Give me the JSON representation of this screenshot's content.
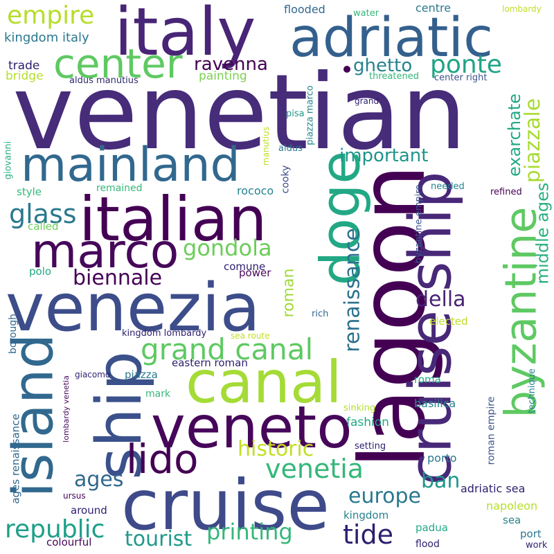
{
  "words": {
    "venetian": {
      "text": "venetian",
      "color": "#472c7a"
    },
    "lagoon": {
      "text": "lagoon",
      "color": "#440154"
    },
    "italy": {
      "text": "italy",
      "color": "#482576"
    },
    "adriatic": {
      "text": "adriatic",
      "color": "#34608d"
    },
    "italian": {
      "text": "italian",
      "color": "#440154"
    },
    "venezia": {
      "text": "venezia",
      "color": "#3d4d8a"
    },
    "mainland": {
      "text": "mainland",
      "color": "#31688e"
    },
    "cruise": {
      "text": "cruise",
      "color": "#3e4a89"
    },
    "canal": {
      "text": "canal",
      "color": "#a5db36"
    },
    "veneto": {
      "text": "veneto",
      "color": "#46075a"
    },
    "marco": {
      "text": "marco",
      "color": "#46075a"
    },
    "ship_left": {
      "text": "ship",
      "color": "#3b518b"
    },
    "island": {
      "text": "island",
      "color": "#31688e"
    },
    "doge": {
      "text": "doge",
      "color": "#22a884"
    },
    "cruiseship": {
      "text": "cruise ship",
      "color": "#482878"
    },
    "byzantine": {
      "text": "byzantine",
      "color": "#5ec962"
    },
    "center": {
      "text": "center",
      "color": "#5ec962"
    },
    "lido": {
      "text": "lido",
      "color": "#440154"
    },
    "empire": {
      "text": "empire",
      "color": "#b5de2b"
    },
    "grand_canal": {
      "text": "grand canal",
      "color": "#5ec962"
    },
    "gondola": {
      "text": "gondola",
      "color": "#6ccd5a"
    },
    "ravenna": {
      "text": "ravenna",
      "color": "#440154"
    },
    "ponte": {
      "text": "ponte",
      "color": "#20a486"
    },
    "ghetto": {
      "text": "ghetto",
      "color": "#26828e"
    },
    "glass": {
      "text": "glass",
      "color": "#2a788e"
    },
    "biennale": {
      "text": "biennale",
      "color": "#440154"
    },
    "della": {
      "text": "della",
      "color": "#482475"
    },
    "important": {
      "text": "important",
      "color": "#1f958b"
    },
    "renaissance": {
      "text": "renaissance",
      "color": "#2c718e"
    },
    "piazzale": {
      "text": "piazzale",
      "color": "#a8db34"
    },
    "exarchate": {
      "text": "exarchate",
      "color": "#22a884"
    },
    "middle_ages": {
      "text": "middle ages",
      "color": "#29af7f"
    },
    "venetia": {
      "text": "venetia",
      "color": "#35b779"
    },
    "historic": {
      "text": "historic",
      "color": "#c2df23"
    },
    "republic": {
      "text": "republic",
      "color": "#1f9e89"
    },
    "europe": {
      "text": "europe",
      "color": "#2a788e"
    },
    "tide": {
      "text": "tide",
      "color": "#2d1e6f"
    },
    "printing": {
      "text": "printing",
      "color": "#35b779"
    },
    "tourist": {
      "text": "tourist",
      "color": "#1f9a8a"
    },
    "ages": {
      "text": "ages",
      "color": "#31688e"
    },
    "ban": {
      "text": "ban",
      "color": "#1f968b"
    },
    "roman": {
      "text": "roman",
      "color": "#a0da39"
    },
    "kingdom_italy": {
      "text": "kingdom italy",
      "color": "#2a788e"
    },
    "trade": {
      "text": "trade",
      "color": "#2d1e6f"
    },
    "bridge": {
      "text": "bridge",
      "color": "#b5de2b"
    },
    "aldus_manutius": {
      "text": "aldus manutius",
      "color": "#2e2c6c"
    },
    "painting": {
      "text": "painting",
      "color": "#7ad151"
    },
    "flooded": {
      "text": "flooded",
      "color": "#31688e"
    },
    "water": {
      "text": "water",
      "color": "#35b779"
    },
    "centre": {
      "text": "centre",
      "color": "#2a788e"
    },
    "lombardy": {
      "text": "lombardy",
      "color": "#bddf26"
    },
    "threatened": {
      "text": "threatened",
      "color": "#35b779"
    },
    "center_right": {
      "text": "center right",
      "color": "#3b528b"
    },
    "grand": {
      "text": "grand",
      "color": "#2d1e6f"
    },
    "pisa": {
      "text": "pisa",
      "color": "#1f9a8a"
    },
    "aldus": {
      "text": "aldus",
      "color": "#2a788e"
    },
    "piazza_marco": {
      "text": "piazza marco",
      "color": "#24878e"
    },
    "manutius": {
      "text": "manutius",
      "color": "#bddf26"
    },
    "giovanni": {
      "text": "giovanni",
      "color": "#2ab07f"
    },
    "style": {
      "text": "style",
      "color": "#35b779"
    },
    "remained": {
      "text": "remained",
      "color": "#35b779"
    },
    "rococo": {
      "text": "rococo",
      "color": "#25838e"
    },
    "cooky": {
      "text": "cooky",
      "color": "#3e4a89"
    },
    "needed": {
      "text": "needed",
      "color": "#26828e"
    },
    "refined": {
      "text": "refined",
      "color": "#440154"
    },
    "byzantine_empire": {
      "text": "byzantine empire",
      "color": "#3b528b"
    },
    "called": {
      "text": "called",
      "color": "#6ccd5a"
    },
    "comune": {
      "text": "comune",
      "color": "#2d1e6f"
    },
    "power": {
      "text": "power",
      "color": "#46075a"
    },
    "polo": {
      "text": "polo",
      "color": "#22a884"
    },
    "rich": {
      "text": "rich",
      "color": "#31688e"
    },
    "elected": {
      "text": "elected",
      "color": "#bddf26"
    },
    "kingdom_lombardy": {
      "text": "kingdom lombardy",
      "color": "#2d1e6f"
    },
    "sea_route": {
      "text": "sea route",
      "color": "#c2df23"
    },
    "borough": {
      "text": "borough",
      "color": "#31688e"
    },
    "eastern_roman": {
      "text": "eastern roman",
      "color": "#2d1e6f"
    },
    "giacomo": {
      "text": "giacomo",
      "color": "#2d1e6f"
    },
    "piazza": {
      "text": "piazza",
      "color": "#2a788e"
    },
    "mark": {
      "text": "mark",
      "color": "#35b779"
    },
    "roma": {
      "text": "roma",
      "color": "#22a884"
    },
    "technique": {
      "text": "technique",
      "color": "#26828e"
    },
    "basilica": {
      "text": "basilica",
      "color": "#26828e"
    },
    "sinking": {
      "text": "sinking",
      "color": "#b5de2b"
    },
    "fashion": {
      "text": "fashion",
      "color": "#22a884"
    },
    "roman_empire": {
      "text": "roman empire",
      "color": "#3b528b"
    },
    "lombardy_venetia": {
      "text": "lombardy venetia",
      "color": "#46075a"
    },
    "setting": {
      "text": "setting",
      "color": "#2d1e6f"
    },
    "porto": {
      "text": "porto",
      "color": "#2a788e"
    },
    "ages_renaissance": {
      "text": "ages renaissance",
      "color": "#31688e"
    },
    "ursus": {
      "text": "ursus",
      "color": "#46075a"
    },
    "adriatic_sea": {
      "text": "adriatic sea",
      "color": "#2d1e6f"
    },
    "around": {
      "text": "around",
      "color": "#2d1e6f"
    },
    "kingdom": {
      "text": "kingdom",
      "color": "#26828e"
    },
    "napoleon": {
      "text": "napoleon",
      "color": "#b5de2b"
    },
    "sea": {
      "text": "sea",
      "color": "#26828e"
    },
    "padua": {
      "text": "padua",
      "color": "#22a884"
    },
    "port": {
      "text": "port",
      "color": "#2a788e"
    },
    "colourful": {
      "text": "colourful",
      "color": "#46075a"
    },
    "flood": {
      "text": "flood",
      "color": "#2d1e6f"
    },
    "work": {
      "text": "work",
      "color": "#2d1e6f"
    }
  }
}
